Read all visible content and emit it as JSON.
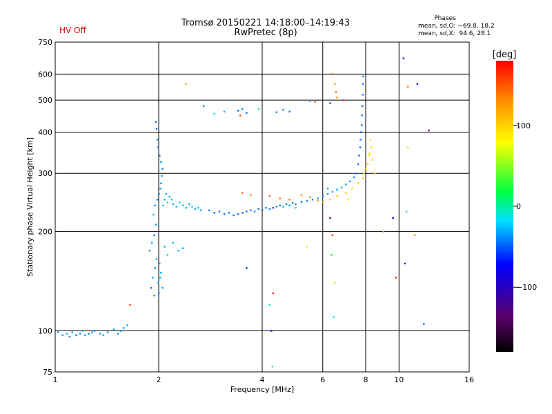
{
  "header": {
    "title_line1": "Tromsø 20150221 14:18:00–14:19:43",
    "title_line2": "RwPretec (8p)",
    "hv_status": "HV Off",
    "hv_status_color": "#cc0000"
  },
  "stats": {
    "title": "Phases",
    "o_line": "mean, sd,O: −69.8, 18.2",
    "x_line": "mean, sd,X:  94.6, 28.1"
  },
  "chart_data": {
    "type": "scatter",
    "xlabel": "Frequency [MHz]",
    "ylabel": "Stationary phase Virtual Height [km]",
    "x_scale": "log2",
    "y_scale": "log",
    "xlim": [
      1,
      16
    ],
    "ylim": [
      75,
      750
    ],
    "x_ticks": [
      {
        "value": 1,
        "label": "1"
      },
      {
        "value": 2,
        "label": "2"
      },
      {
        "value": 4,
        "label": "4"
      },
      {
        "value": 6,
        "label": "6"
      },
      {
        "value": 8,
        "label": "8"
      },
      {
        "value": 10,
        "label": "10"
      },
      {
        "value": 16,
        "label": "16"
      }
    ],
    "y_ticks": [
      {
        "value": 75,
        "label": "75"
      },
      {
        "value": 100,
        "label": "100"
      },
      {
        "value": 200,
        "label": "200"
      },
      {
        "value": 300,
        "label": "300"
      },
      {
        "value": 400,
        "label": "400"
      },
      {
        "value": 500,
        "label": "500"
      },
      {
        "value": 600,
        "label": "600"
      },
      {
        "value": 750,
        "label": "750"
      }
    ],
    "grid": true,
    "colorbar": {
      "label": "[deg]",
      "range": [
        -180,
        180
      ],
      "ticks": [
        {
          "value": 100,
          "label": "100"
        },
        {
          "value": 0,
          "label": "0"
        },
        {
          "value": -100,
          "label": "−100"
        }
      ]
    },
    "series": [
      {
        "points": [
          [
            1.02,
            99,
            -80
          ],
          [
            1.05,
            97,
            -75
          ],
          [
            1.08,
            98,
            -70
          ],
          [
            1.1,
            96,
            -78
          ],
          [
            1.12,
            99,
            -72
          ],
          [
            1.15,
            97,
            -80
          ],
          [
            1.18,
            98,
            -76
          ],
          [
            1.2,
            100,
            -74
          ],
          [
            1.22,
            97,
            -70
          ],
          [
            1.25,
            98,
            -78
          ],
          [
            1.28,
            99,
            -72
          ],
          [
            1.3,
            100,
            -80
          ],
          [
            1.35,
            98,
            -75
          ],
          [
            1.38,
            97,
            -73
          ],
          [
            1.42,
            99,
            -77
          ],
          [
            1.48,
            101,
            -74
          ],
          [
            1.52,
            98,
            -76
          ],
          [
            1.55,
            100,
            -78
          ],
          [
            1.58,
            102,
            -72
          ],
          [
            1.62,
            104,
            -75
          ],
          [
            1.9,
            135,
            -85
          ],
          [
            1.92,
            145,
            -75
          ],
          [
            1.95,
            155,
            -80
          ],
          [
            1.97,
            165,
            -70
          ],
          [
            1.88,
            175,
            -78
          ],
          [
            1.91,
            185,
            -72
          ],
          [
            1.94,
            195,
            -82
          ],
          [
            1.96,
            210,
            -75
          ],
          [
            1.93,
            225,
            -70
          ],
          [
            1.95,
            240,
            -80
          ],
          [
            1.98,
            250,
            -78
          ],
          [
            2.0,
            260,
            -85
          ],
          [
            2.02,
            270,
            -80
          ],
          [
            2.03,
            280,
            -74
          ],
          [
            2.04,
            295,
            -78
          ],
          [
            2.05,
            310,
            -82
          ],
          [
            2.03,
            325,
            -76
          ],
          [
            2.01,
            340,
            -88
          ],
          [
            1.99,
            360,
            -84
          ],
          [
            1.98,
            380,
            -80
          ],
          [
            1.97,
            410,
            -90
          ],
          [
            1.96,
            430,
            -86
          ],
          [
            2.06,
            240,
            -70
          ],
          [
            2.08,
            250,
            -68
          ],
          [
            2.1,
            260,
            -72
          ],
          [
            2.12,
            245,
            -66
          ],
          [
            2.15,
            255,
            -70
          ],
          [
            2.18,
            250,
            -68
          ],
          [
            2.2,
            242,
            -72
          ],
          [
            2.25,
            238,
            -70
          ],
          [
            2.3,
            245,
            -66
          ],
          [
            2.35,
            240,
            -68
          ],
          [
            2.4,
            236,
            -70
          ],
          [
            2.45,
            242,
            -72
          ],
          [
            2.5,
            238,
            -66
          ],
          [
            2.55,
            234,
            -70
          ],
          [
            2.6,
            236,
            -68
          ],
          [
            2.65,
            232,
            -72
          ],
          [
            2.08,
            180,
            -70
          ],
          [
            2.12,
            170,
            -66
          ],
          [
            2.2,
            185,
            -70
          ],
          [
            2.28,
            175,
            -68
          ],
          [
            2.35,
            178,
            -72
          ],
          [
            2.02,
            145,
            -70
          ],
          [
            2.05,
            135,
            -74
          ],
          [
            2.0,
            130,
            -80
          ],
          [
            2.03,
            150,
            -76
          ],
          [
            2.01,
            160,
            -72
          ],
          [
            1.94,
            128,
            -78
          ],
          [
            1.99,
            140,
            -70
          ],
          [
            2.8,
            232,
            -80
          ],
          [
            2.9,
            228,
            -85
          ],
          [
            3.0,
            230,
            -82
          ],
          [
            3.1,
            226,
            -88
          ],
          [
            3.2,
            228,
            -84
          ],
          [
            3.3,
            224,
            -86
          ],
          [
            3.4,
            226,
            -82
          ],
          [
            3.5,
            228,
            -88
          ],
          [
            3.6,
            230,
            -84
          ],
          [
            3.7,
            232,
            -86
          ],
          [
            3.8,
            230,
            -82
          ],
          [
            3.9,
            234,
            -84
          ],
          [
            4.0,
            232,
            -86
          ],
          [
            4.1,
            236,
            -82
          ],
          [
            4.2,
            234,
            -84
          ],
          [
            4.3,
            236,
            -88
          ],
          [
            4.4,
            238,
            -80
          ],
          [
            4.5,
            240,
            -84
          ],
          [
            4.6,
            238,
            -82
          ],
          [
            4.7,
            242,
            -86
          ],
          [
            4.8,
            240,
            -80
          ],
          [
            4.9,
            244,
            -84
          ],
          [
            5.0,
            242,
            -82
          ],
          [
            5.2,
            246,
            -86
          ],
          [
            5.4,
            248,
            -80
          ],
          [
            5.6,
            250,
            -84
          ],
          [
            5.8,
            252,
            -78
          ],
          [
            6.0,
            256,
            -80
          ],
          [
            6.2,
            260,
            -76
          ],
          [
            6.4,
            264,
            -80
          ],
          [
            6.6,
            268,
            -74
          ],
          [
            6.8,
            272,
            -78
          ],
          [
            7.0,
            278,
            -76
          ],
          [
            7.2,
            284,
            -80
          ],
          [
            7.4,
            292,
            -78
          ],
          [
            7.5,
            300,
            -82
          ],
          [
            7.6,
            320,
            -85
          ],
          [
            7.65,
            340,
            -88
          ],
          [
            7.7,
            360,
            -90
          ],
          [
            7.72,
            380,
            -86
          ],
          [
            7.75,
            400,
            -90
          ],
          [
            7.78,
            420,
            -88
          ],
          [
            7.8,
            450,
            -84
          ],
          [
            7.82,
            480,
            -86
          ],
          [
            7.84,
            520,
            -80
          ],
          [
            7.85,
            560,
            -82
          ],
          [
            7.86,
            590,
            -78
          ],
          [
            3.5,
            262,
            150
          ],
          [
            3.7,
            258,
            140
          ],
          [
            4.2,
            256,
            145
          ],
          [
            4.5,
            252,
            150
          ],
          [
            4.8,
            250,
            140
          ],
          [
            5.2,
            258,
            130
          ],
          [
            5.5,
            254,
            135
          ],
          [
            5.8,
            248,
            120
          ],
          [
            6.0,
            246,
            115
          ],
          [
            6.3,
            250,
            110
          ],
          [
            6.6,
            256,
            105
          ],
          [
            7.0,
            262,
            100
          ],
          [
            7.3,
            270,
            95
          ],
          [
            7.6,
            280,
            100
          ],
          [
            7.9,
            300,
            95
          ],
          [
            8.1,
            320,
            100
          ],
          [
            8.2,
            340,
            95
          ],
          [
            8.3,
            360,
            100
          ],
          [
            8.25,
            380,
            95
          ],
          [
            8.2,
            345,
            105
          ],
          [
            8.0,
            310,
            110
          ],
          [
            7.85,
            290,
            100
          ],
          [
            8.35,
            330,
            100
          ],
          [
            3.4,
            465,
            -90
          ],
          [
            3.5,
            470,
            -80
          ],
          [
            3.6,
            458,
            -85
          ],
          [
            3.45,
            450,
            160
          ],
          [
            4.4,
            460,
            -85
          ],
          [
            4.6,
            468,
            -80
          ],
          [
            4.8,
            462,
            -88
          ],
          [
            5.5,
            498,
            -80
          ],
          [
            5.7,
            495,
            150
          ],
          [
            6.5,
            560,
            120
          ],
          [
            6.55,
            530,
            140
          ],
          [
            6.6,
            510,
            130
          ],
          [
            6.4,
            600,
            160
          ],
          [
            6.3,
            490,
            -90
          ],
          [
            5.0,
            236,
            -40
          ],
          [
            4.6,
            238,
            -30
          ],
          [
            2.7,
            480,
            -85
          ],
          [
            2.9,
            455,
            -60
          ],
          [
            3.1,
            462,
            -70
          ],
          [
            3.9,
            470,
            -40
          ],
          [
            6.3,
            220,
            -140
          ],
          [
            6.4,
            195,
            160
          ],
          [
            6.35,
            170,
            -10
          ],
          [
            6.5,
            140,
            60
          ],
          [
            6.45,
            110,
            -60
          ],
          [
            4.3,
            130,
            170
          ],
          [
            4.2,
            120,
            -30
          ],
          [
            4.25,
            100,
            -110
          ],
          [
            4.28,
            78,
            -50
          ],
          [
            3.6,
            155,
            -100
          ],
          [
            2.4,
            560,
            120
          ],
          [
            1.65,
            120,
            160
          ],
          [
            9.6,
            220,
            -110
          ],
          [
            9.8,
            145,
            170
          ],
          [
            10.3,
            670,
            -120
          ],
          [
            10.6,
            550,
            140
          ],
          [
            11.3,
            560,
            -110
          ],
          [
            12.2,
            405,
            -140
          ],
          [
            11.8,
            105,
            -85
          ],
          [
            11.1,
            195,
            120
          ],
          [
            10.5,
            230,
            -60
          ],
          [
            10.6,
            360,
            100
          ],
          [
            5.4,
            180,
            70
          ],
          [
            6.9,
            500,
            160
          ],
          [
            6.2,
            270,
            -70
          ],
          [
            7.1,
            250,
            90
          ],
          [
            8.5,
            300,
            110
          ],
          [
            9.0,
            200,
            130
          ],
          [
            10.4,
            160,
            -100
          ]
        ]
      }
    ]
  }
}
